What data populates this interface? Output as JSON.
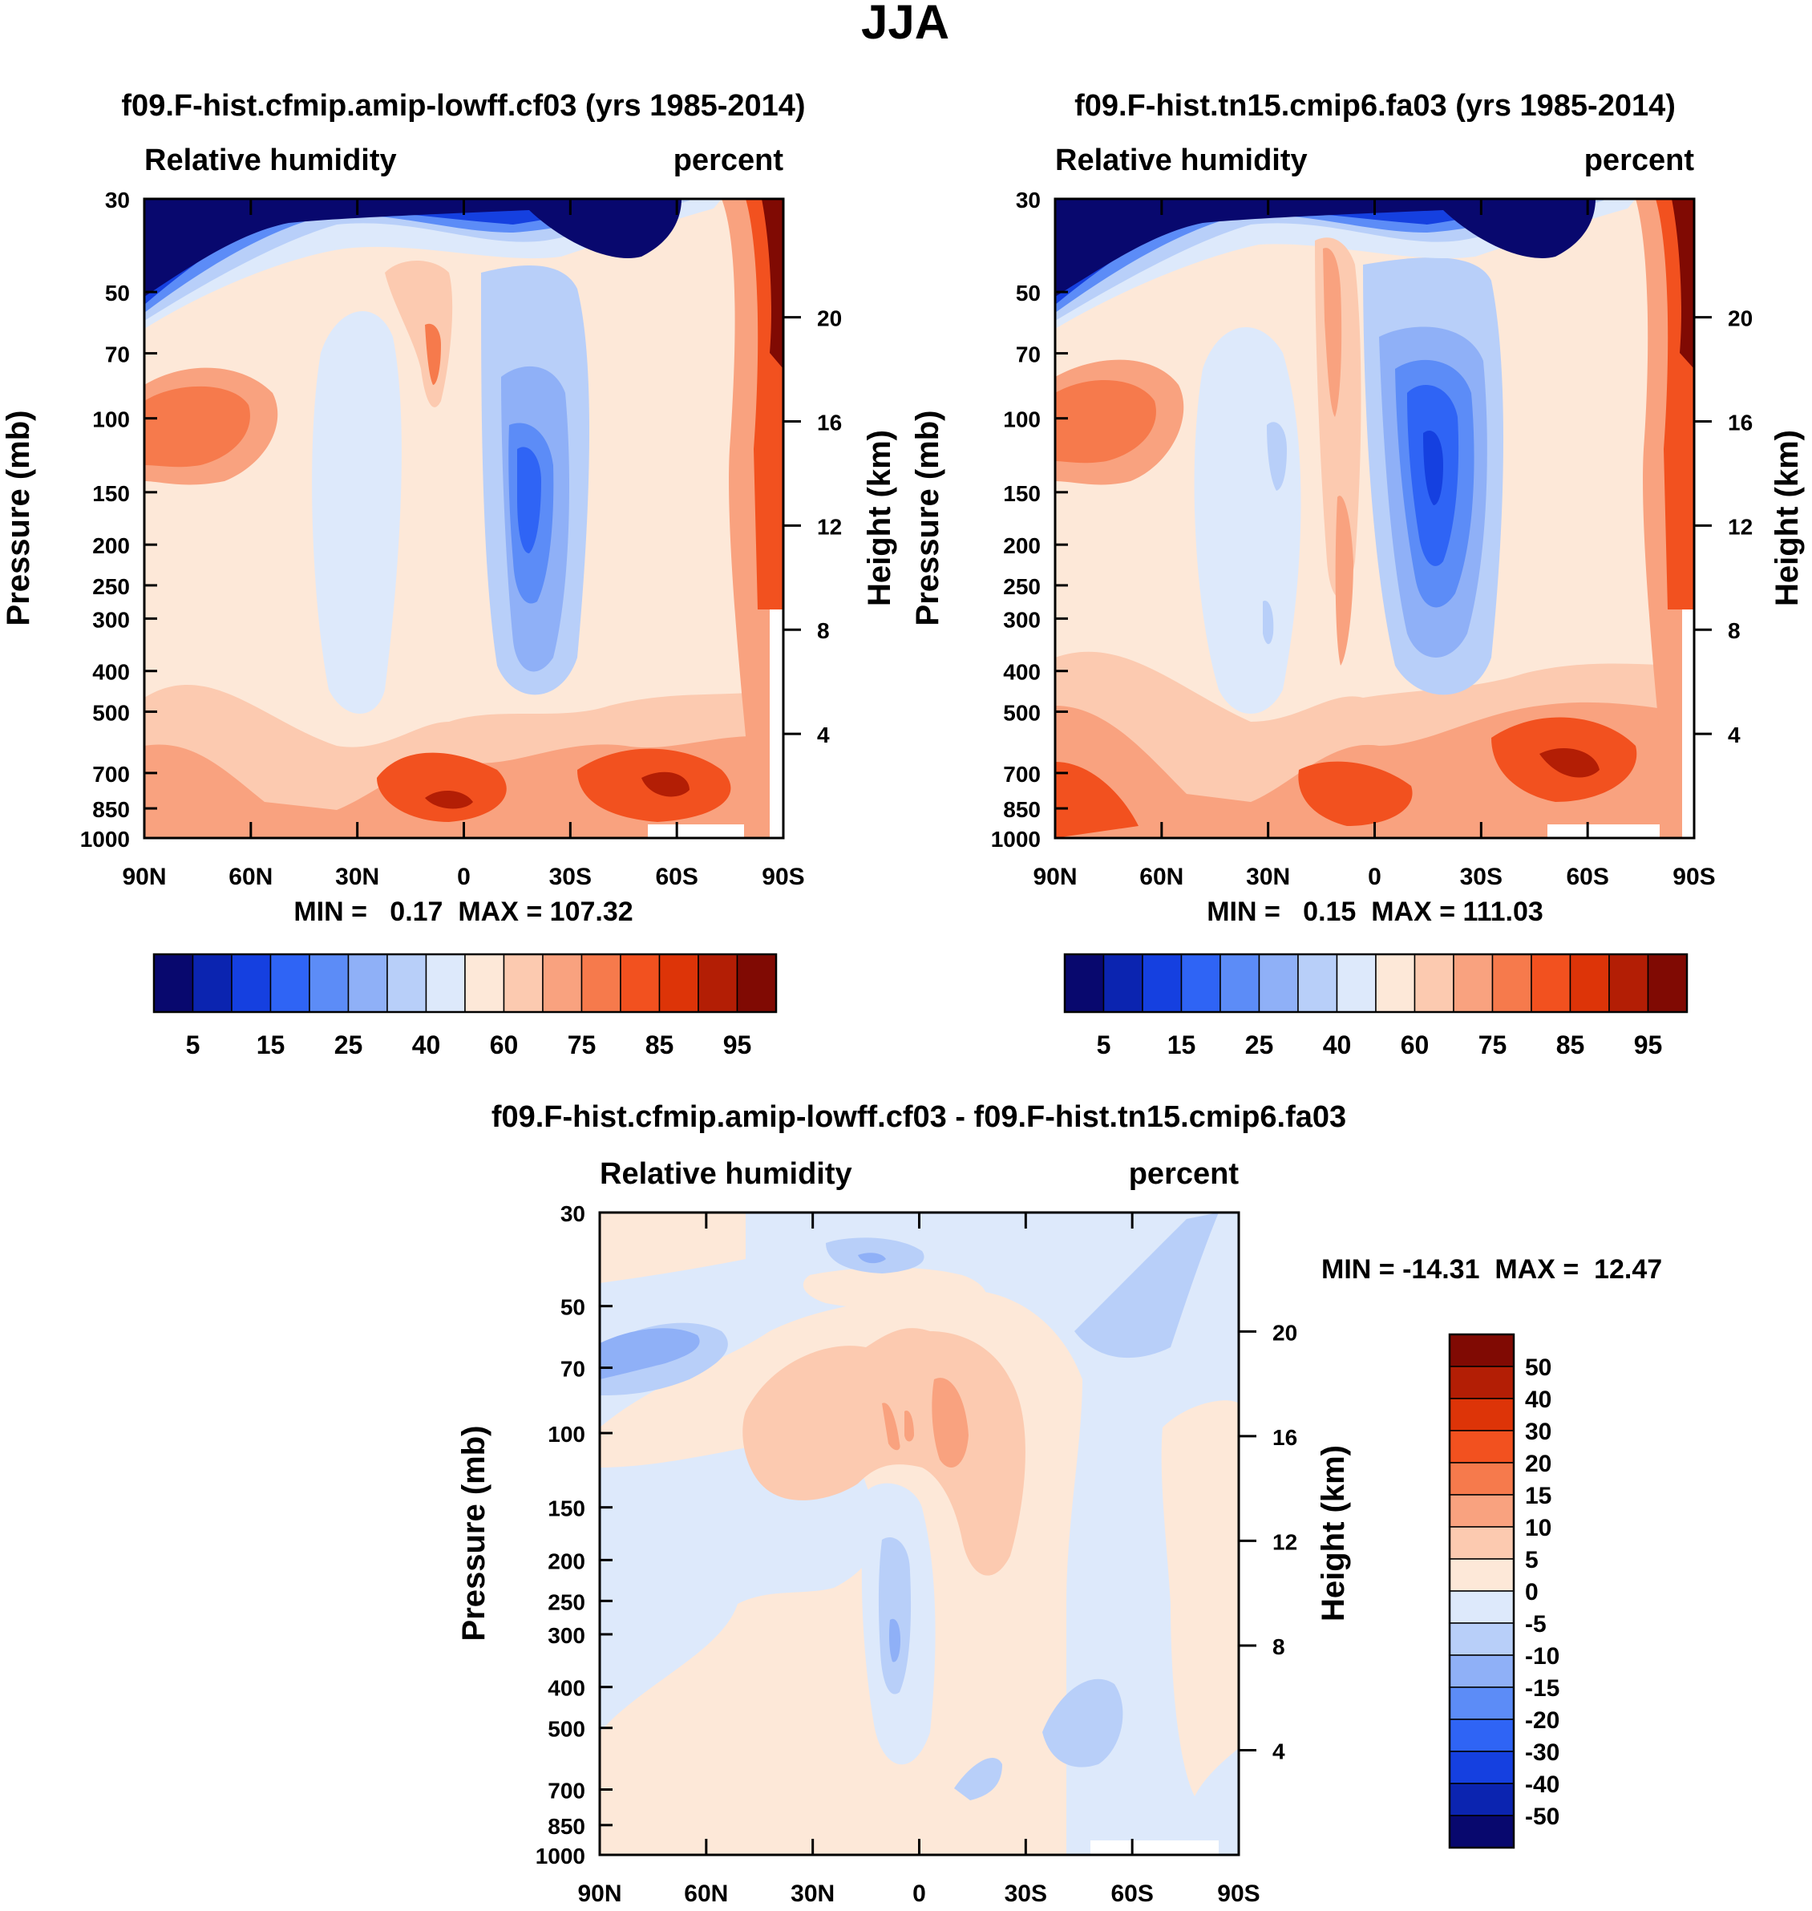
{
  "figure": {
    "title": "JJA"
  },
  "chart_data": [
    {
      "type": "heatmap",
      "panel": "left-top",
      "title": "f09.F-hist.cfmip.amip-lowff.cf03 (yrs 1985-2014)",
      "variable": "Relative humidity",
      "units": "percent",
      "ylabel": "Pressure (mb)",
      "ylabel_right": "Height (km)",
      "x_ticks": [
        "90N",
        "60N",
        "30N",
        "0",
        "30S",
        "60S",
        "90S"
      ],
      "y_ticks": [
        "30",
        "50",
        "70",
        "100",
        "150",
        "200",
        "250",
        "300",
        "400",
        "500",
        "700",
        "850",
        "1000"
      ],
      "height_ticks": [
        "20",
        "16",
        "12",
        "8",
        "4"
      ],
      "stats": "MIN =   0.17  MAX = 107.32",
      "min": 0.17,
      "max": 107.32,
      "colorbar_labels": [
        "5",
        "15",
        "25",
        "40",
        "60",
        "75",
        "85",
        "95"
      ]
    },
    {
      "type": "heatmap",
      "panel": "right-top",
      "title": "f09.F-hist.tn15.cmip6.fa03 (yrs 1985-2014)",
      "variable": "Relative humidity",
      "units": "percent",
      "ylabel": "Pressure (mb)",
      "ylabel_right": "Height (km)",
      "x_ticks": [
        "90N",
        "60N",
        "30N",
        "0",
        "30S",
        "60S",
        "90S"
      ],
      "y_ticks": [
        "30",
        "50",
        "70",
        "100",
        "150",
        "200",
        "250",
        "300",
        "400",
        "500",
        "700",
        "850",
        "1000"
      ],
      "height_ticks": [
        "20",
        "16",
        "12",
        "8",
        "4"
      ],
      "stats": "MIN =   0.15  MAX = 111.03",
      "min": 0.15,
      "max": 111.03,
      "colorbar_labels": [
        "5",
        "15",
        "25",
        "40",
        "60",
        "75",
        "85",
        "95"
      ]
    },
    {
      "type": "heatmap",
      "panel": "bottom-difference",
      "title": "f09.F-hist.cfmip.amip-lowff.cf03 - f09.F-hist.tn15.cmip6.fa03",
      "variable": "Relative humidity",
      "units": "percent",
      "ylabel": "Pressure (mb)",
      "ylabel_right": "Height (km)",
      "x_ticks": [
        "90N",
        "60N",
        "30N",
        "0",
        "30S",
        "60S",
        "90S"
      ],
      "y_ticks": [
        "30",
        "50",
        "70",
        "100",
        "150",
        "200",
        "250",
        "300",
        "400",
        "500",
        "700",
        "850",
        "1000"
      ],
      "height_ticks": [
        "20",
        "16",
        "12",
        "8",
        "4"
      ],
      "stats": "MIN = -14.31  MAX =  12.47",
      "min": -14.31,
      "max": 12.47,
      "colorbar_labels": [
        "50",
        "40",
        "30",
        "20",
        "15",
        "10",
        "5",
        "0",
        "-5",
        "-10",
        "-15",
        "-20",
        "-30",
        "-40",
        "-50"
      ]
    }
  ],
  "colors": {
    "abs_scale": [
      "#08086e",
      "#0b24b0",
      "#1540e0",
      "#2f64f5",
      "#5c8cf7",
      "#8fb0f7",
      "#b8cff9",
      "#dde9fb",
      "#fde8d8",
      "#fccab0",
      "#f9a27f",
      "#f67a4c",
      "#f2511f",
      "#dd3408",
      "#b31e05",
      "#800a03"
    ],
    "diff_scale": [
      "#800a03",
      "#b31e05",
      "#dd3408",
      "#f2511f",
      "#f67a4c",
      "#f9a27f",
      "#fccab0",
      "#fde8d8",
      "#dde9fb",
      "#b8cff9",
      "#8fb0f7",
      "#5c8cf7",
      "#2f64f5",
      "#1540e0",
      "#0b24b0",
      "#08086e"
    ]
  }
}
